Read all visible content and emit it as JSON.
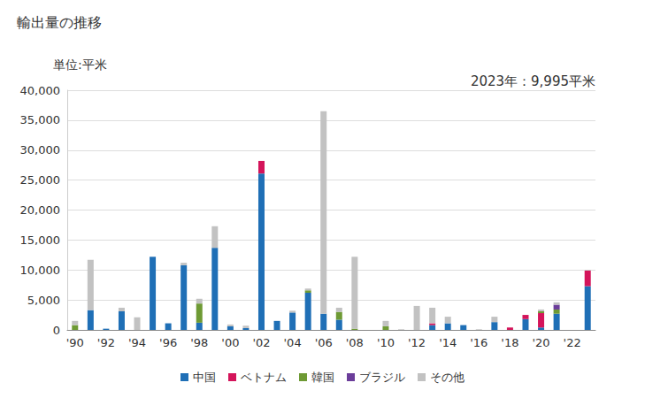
{
  "chart_data": {
    "type": "bar",
    "title": "輸出量の推移",
    "ylabel": "単位:平米",
    "annotations": [
      "2023年：9,995平米"
    ],
    "categories": [
      "'90",
      null,
      "'92",
      null,
      "'94",
      null,
      "'96",
      null,
      "'98",
      null,
      "'00",
      null,
      "'02",
      null,
      "'04",
      null,
      "'06",
      null,
      "'08",
      null,
      "'10",
      null,
      "'12",
      null,
      "'14",
      null,
      "'16",
      null,
      "'18",
      null,
      "'20",
      null,
      "'22",
      null
    ],
    "series": [
      {
        "name": "中国",
        "color": "#1f6fb6",
        "values": [
          0,
          3300,
          200,
          3100,
          0,
          12200,
          1100,
          10800,
          1200,
          13700,
          600,
          300,
          26100,
          1500,
          2900,
          6200,
          2700,
          1700,
          0,
          0,
          0,
          0,
          0,
          800,
          1100,
          800,
          0,
          1300,
          0,
          1800,
          400,
          2700,
          0,
          7300
        ]
      },
      {
        "name": "ベトナム",
        "color": "#d4145a",
        "values": [
          0,
          0,
          0,
          0,
          0,
          0,
          0,
          0,
          0,
          0,
          0,
          0,
          2100,
          0,
          0,
          0,
          0,
          0,
          0,
          0,
          0,
          0,
          0,
          300,
          0,
          0,
          0,
          0,
          400,
          700,
          2400,
          0,
          0,
          2600
        ]
      },
      {
        "name": "韓国",
        "color": "#6e9a34",
        "values": [
          800,
          0,
          0,
          0,
          0,
          0,
          0,
          0,
          3200,
          0,
          0,
          0,
          0,
          0,
          0,
          400,
          0,
          1300,
          200,
          0,
          600,
          0,
          0,
          0,
          0,
          0,
          0,
          0,
          0,
          0,
          300,
          700,
          0,
          0
        ]
      },
      {
        "name": "ブラジル",
        "color": "#6b3d9a",
        "values": [
          0,
          0,
          0,
          0,
          0,
          0,
          0,
          0,
          0,
          0,
          0,
          0,
          0,
          0,
          0,
          0,
          0,
          0,
          0,
          0,
          0,
          0,
          0,
          0,
          0,
          0,
          0,
          0,
          0,
          0,
          0,
          800,
          0,
          0
        ]
      },
      {
        "name": "その他",
        "color": "#c2c2c2",
        "values": [
          700,
          8400,
          0,
          600,
          2100,
          0,
          0,
          400,
          800,
          3600,
          300,
          400,
          0,
          0,
          300,
          300,
          33800,
          700,
          12000,
          0,
          900,
          100,
          4000,
          2600,
          1100,
          0,
          100,
          900,
          0,
          0,
          300,
          400,
          0,
          95
        ]
      }
    ],
    "ylim": [
      0,
      40000
    ],
    "yticks": [
      0,
      {
        "value": 5000,
        "label": "5,000"
      },
      {
        "value": 10000,
        "label": "10,000"
      },
      {
        "value": 15000,
        "label": "15,000"
      },
      {
        "value": 20000,
        "label": "20,000"
      },
      {
        "value": 25000,
        "label": "25,000"
      },
      {
        "value": 30000,
        "label": "30,000"
      },
      {
        "value": 35000,
        "label": "35,000"
      },
      {
        "value": 40000,
        "label": "40,000"
      }
    ],
    "stacked": true,
    "grid": true,
    "legend": "bottom"
  }
}
